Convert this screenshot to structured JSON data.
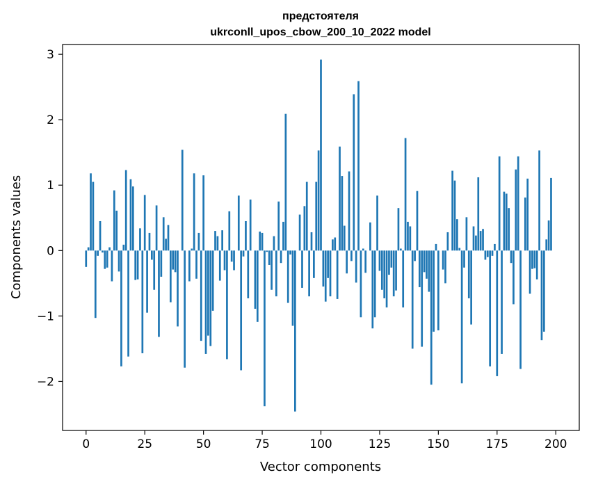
{
  "chart_data": {
    "type": "bar",
    "title_line1": "предстоятеля",
    "title_line2": "ukrconll_upos_cbow_200_10_2022 model",
    "xlabel": "Vector components",
    "ylabel": "Components values",
    "xlim": [
      -10,
      210
    ],
    "ylim": [
      -2.75,
      3.15
    ],
    "xticks": [
      0,
      25,
      50,
      75,
      100,
      125,
      150,
      175,
      200
    ],
    "xtick_labels": [
      "0",
      "25",
      "50",
      "75",
      "100",
      "125",
      "150",
      "175",
      "200"
    ],
    "yticks": [
      -2,
      -1,
      0,
      1,
      2,
      3
    ],
    "ytick_labels": [
      "−2",
      "−1",
      "0",
      "1",
      "2",
      "3"
    ],
    "bar_color": "#1f77b4",
    "values": [
      -0.25,
      0.05,
      1.18,
      1.05,
      -1.03,
      -0.08,
      0.45,
      -0.03,
      -0.28,
      -0.26,
      0.05,
      -0.47,
      0.92,
      0.61,
      -0.32,
      -1.77,
      0.09,
      1.23,
      -1.62,
      1.09,
      0.98,
      -0.45,
      -0.44,
      0.34,
      -1.57,
      0.85,
      -0.95,
      0.27,
      -0.14,
      -0.6,
      0.69,
      -1.32,
      -0.4,
      0.51,
      0.18,
      0.39,
      -0.79,
      -0.29,
      -0.33,
      -1.16,
      0.0,
      1.54,
      -1.79,
      0.0,
      -0.47,
      0.03,
      1.18,
      -0.43,
      0.27,
      -1.38,
      1.15,
      -1.58,
      -1.3,
      -1.46,
      -0.92,
      0.3,
      0.22,
      -0.46,
      0.31,
      -0.3,
      -1.66,
      0.6,
      -0.17,
      -0.3,
      0.0,
      0.84,
      -1.83,
      -0.09,
      0.45,
      -0.73,
      0.78,
      0.0,
      -0.89,
      -1.09,
      0.29,
      0.27,
      -2.38,
      -0.02,
      -0.22,
      -0.6,
      0.22,
      -0.7,
      0.75,
      -0.19,
      0.44,
      2.09,
      -0.8,
      -0.06,
      -1.15,
      -2.46,
      0.0,
      0.55,
      -0.57,
      0.68,
      1.05,
      -0.7,
      0.28,
      -0.42,
      1.05,
      1.53,
      2.92,
      -0.55,
      -0.78,
      -0.42,
      -0.7,
      0.17,
      0.2,
      -0.74,
      1.59,
      1.14,
      0.38,
      -0.35,
      1.21,
      -0.16,
      2.39,
      -0.49,
      2.59,
      -1.02,
      0.03,
      -0.34,
      0.0,
      0.43,
      -1.19,
      -1.02,
      0.84,
      -0.31,
      -0.6,
      -0.73,
      -0.87,
      -0.37,
      -0.26,
      -0.7,
      -0.61,
      0.65,
      0.03,
      -0.87,
      1.72,
      0.44,
      0.37,
      -1.5,
      -0.16,
      0.91,
      -0.56,
      -1.47,
      -0.33,
      -0.43,
      -0.63,
      -2.05,
      -1.24,
      0.1,
      -1.22,
      0.0,
      -0.29,
      -0.5,
      0.28,
      0.0,
      1.22,
      1.07,
      0.48,
      0.04,
      -2.03,
      -0.26,
      0.51,
      -0.73,
      -1.13,
      0.37,
      0.23,
      1.12,
      0.3,
      0.33,
      -0.14,
      -0.1,
      -1.77,
      -0.08,
      0.1,
      -1.92,
      1.44,
      -1.58,
      0.9,
      0.87,
      0.65,
      -0.19,
      -0.82,
      1.24,
      1.44,
      -1.81,
      0.0,
      0.81,
      1.1,
      -0.66,
      -0.28,
      -0.27,
      -0.44,
      1.53,
      -1.37,
      -1.24,
      0.17,
      0.46,
      1.11
    ]
  }
}
